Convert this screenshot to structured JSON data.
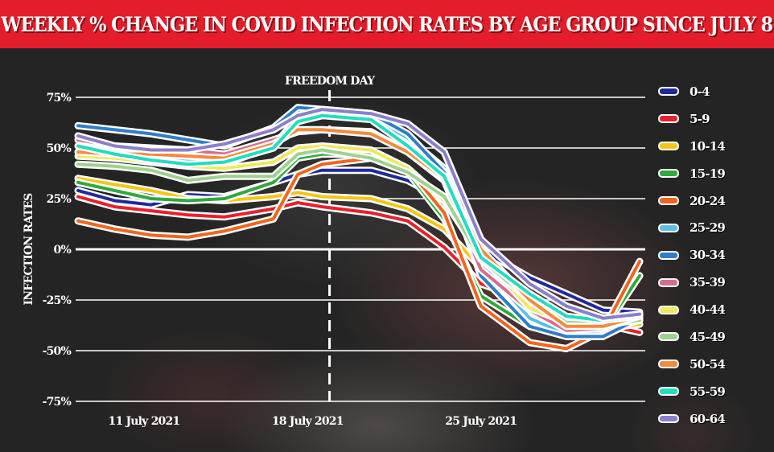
{
  "header": {
    "title": "WEEKLY % CHANGE IN COVID INFECTION RATES BY AGE GROUP SINCE JULY 8"
  },
  "chart_data": {
    "type": "line",
    "title": "WEEKLY % CHANGE IN COVID INFECTION RATES BY AGE GROUP SINCE JULY 8",
    "xlabel": "",
    "ylabel": "INFECTION RATES",
    "x_unit": "days since 8 July 2021",
    "x": [
      0,
      1.5,
      3,
      4.5,
      6,
      8,
      9,
      10,
      12,
      13.5,
      15,
      16.5,
      18.5,
      20,
      21.5,
      23
    ],
    "xlim": [
      0,
      23
    ],
    "x_ticks": [
      {
        "label": "11 July 2021",
        "value": 2.7
      },
      {
        "label": "18 July 2021",
        "value": 9.4
      },
      {
        "label": "25 July 2021",
        "value": 16.5
      }
    ],
    "ylim": [
      -75,
      75
    ],
    "y_ticks": [
      {
        "label": "75%",
        "value": 75
      },
      {
        "label": "50%",
        "value": 50
      },
      {
        "label": "25%",
        "value": 25
      },
      {
        "label": "0%",
        "value": 0
      },
      {
        "label": "-25%",
        "value": -25
      },
      {
        "label": "-50%",
        "value": -50
      },
      {
        "label": "-75%",
        "value": -75
      }
    ],
    "grid": true,
    "annotation": {
      "label": "FREEDOM DAY",
      "x": 10.3
    },
    "legend_position": "right",
    "series": [
      {
        "name": "0-4",
        "color": "#1e2a9c",
        "values": [
          29,
          24,
          22,
          27,
          26,
          33,
          37,
          39,
          39,
          34,
          24,
          0,
          -14,
          -22,
          -30,
          -31
        ]
      },
      {
        "name": "5-9",
        "color": "#e8202a",
        "values": [
          26,
          21,
          19,
          17,
          16,
          20,
          23,
          21,
          18,
          14,
          1,
          -17,
          -26,
          -34,
          -37,
          -41
        ]
      },
      {
        "name": "10-14",
        "color": "#f6c515",
        "values": [
          35,
          32,
          29,
          25,
          24,
          26,
          28,
          26,
          25,
          20,
          10,
          -9,
          -27,
          -36,
          -39,
          -37
        ]
      },
      {
        "name": "15-19",
        "color": "#2eaa3c",
        "values": [
          33,
          29,
          25,
          24,
          25,
          33,
          45,
          47,
          47,
          38,
          15,
          -23,
          -38,
          -42,
          -40,
          -13
        ]
      },
      {
        "name": "20-24",
        "color": "#f0661e",
        "values": [
          14,
          10,
          7,
          6,
          9,
          15,
          37,
          42,
          45,
          40,
          18,
          -28,
          -46,
          -49,
          -40,
          -6
        ]
      },
      {
        "name": "25-29",
        "color": "#5bbde8",
        "values": [
          51,
          48,
          46,
          44,
          42,
          51,
          65,
          66,
          65,
          55,
          40,
          -7,
          -34,
          -42,
          -40,
          -35
        ]
      },
      {
        "name": "30-34",
        "color": "#2f7ec9",
        "values": [
          61,
          59,
          57,
          54,
          51,
          60,
          70,
          69,
          67,
          57,
          38,
          -13,
          -38,
          -43,
          -43,
          -34
        ]
      },
      {
        "name": "35-39",
        "color": "#d76d8a",
        "values": [
          54,
          51,
          50,
          49,
          47,
          54,
          58,
          59,
          58,
          48,
          34,
          -10,
          -30,
          -40,
          -39,
          -33
        ]
      },
      {
        "name": "40-44",
        "color": "#f2e85e",
        "values": [
          46,
          45,
          43,
          41,
          40,
          43,
          50,
          51,
          49,
          40,
          24,
          -3,
          -29,
          -36,
          -35,
          -32
        ]
      },
      {
        "name": "45-49",
        "color": "#9fd28e",
        "values": [
          42,
          41,
          39,
          34,
          36,
          36,
          47,
          49,
          45,
          38,
          26,
          -5,
          -25,
          -36,
          -37,
          -35
        ]
      },
      {
        "name": "50-54",
        "color": "#f58a3c",
        "values": [
          48,
          47,
          47,
          46,
          45,
          52,
          59,
          59,
          57,
          48,
          35,
          0,
          -25,
          -38,
          -38,
          -33
        ]
      },
      {
        "name": "55-59",
        "color": "#23dcc0",
        "values": [
          51,
          47,
          44,
          42,
          43,
          50,
          63,
          66,
          64,
          51,
          36,
          -4,
          -22,
          -33,
          -35,
          -33
        ]
      },
      {
        "name": "60-64",
        "color": "#8a7fcb",
        "values": [
          56,
          51,
          49,
          49,
          52,
          59,
          66,
          69,
          67,
          62,
          48,
          5,
          -17,
          -28,
          -34,
          -32
        ]
      }
    ]
  },
  "legend": {
    "items": [
      {
        "label": "0-4",
        "color": "#1e2a9c"
      },
      {
        "label": "5-9",
        "color": "#e8202a"
      },
      {
        "label": "10-14",
        "color": "#f6c515"
      },
      {
        "label": "15-19",
        "color": "#2eaa3c"
      },
      {
        "label": "20-24",
        "color": "#f0661e"
      },
      {
        "label": "25-29",
        "color": "#5bbde8"
      },
      {
        "label": "30-34",
        "color": "#2f7ec9"
      },
      {
        "label": "35-39",
        "color": "#d76d8a"
      },
      {
        "label": "40-44",
        "color": "#f2e85e"
      },
      {
        "label": "45-49",
        "color": "#9fd28e"
      },
      {
        "label": "50-54",
        "color": "#f58a3c"
      },
      {
        "label": "55-59",
        "color": "#23dcc0"
      },
      {
        "label": "60-64",
        "color": "#8a7fcb"
      }
    ]
  },
  "colors": {
    "title_bar": "#e41d2a",
    "background": "#242424",
    "gridline": "#ffffff"
  }
}
